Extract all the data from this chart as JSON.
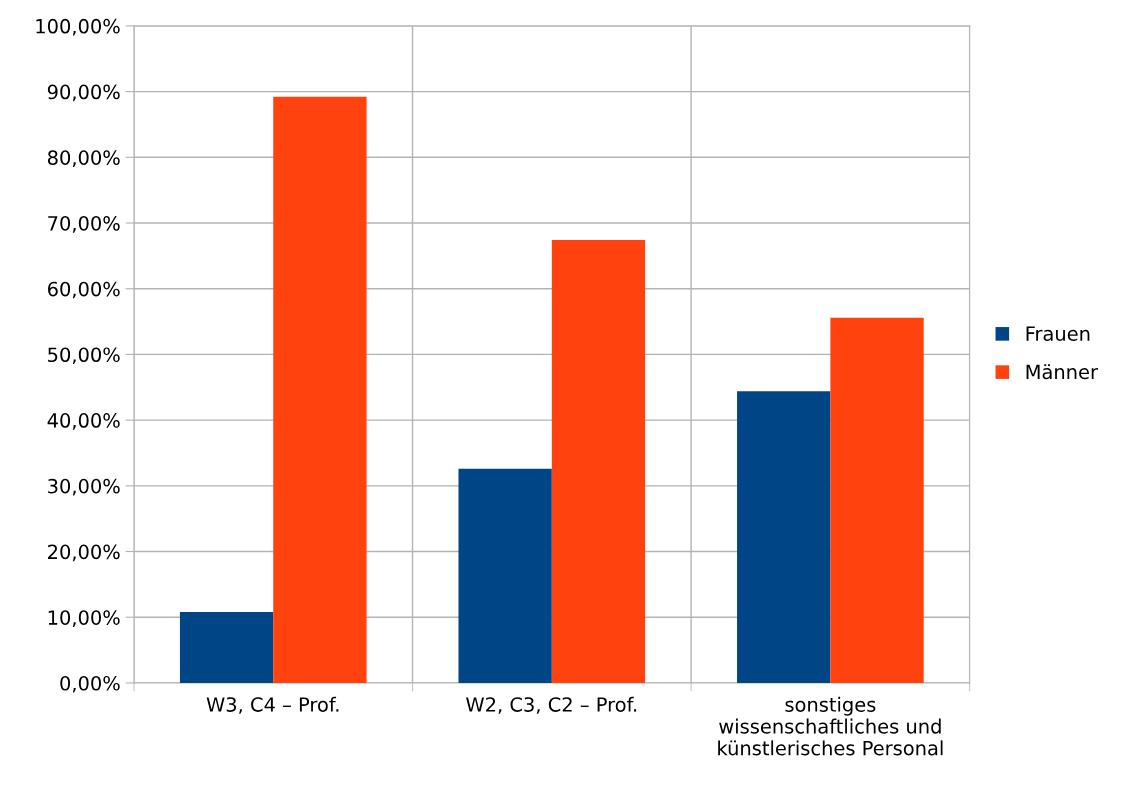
{
  "chart_data": {
    "type": "bar",
    "categories": [
      "W3, C4 – Prof.",
      "W2, C3, C2 – Prof.",
      "sonstiges\nwissenschaftliches und\nkünstlerisches Personal"
    ],
    "series": [
      {
        "name": "Frauen",
        "color": "#004586",
        "values": [
          10.8,
          32.6,
          44.4
        ]
      },
      {
        "name": "Männer",
        "color": "#ff420e",
        "values": [
          89.2,
          67.4,
          55.6
        ]
      }
    ],
    "ylim": [
      0,
      100
    ],
    "yticks": [
      {
        "value": 0,
        "label": "0,00%"
      },
      {
        "value": 10,
        "label": "10,00%"
      },
      {
        "value": 20,
        "label": "20,00%"
      },
      {
        "value": 30,
        "label": "30,00%"
      },
      {
        "value": 40,
        "label": "40,00%"
      },
      {
        "value": 50,
        "label": "50,00%"
      },
      {
        "value": 60,
        "label": "60,00%"
      },
      {
        "value": 70,
        "label": "70,00%"
      },
      {
        "value": 80,
        "label": "80,00%"
      },
      {
        "value": 90,
        "label": "90,00%"
      },
      {
        "value": 100,
        "label": "100,00%"
      }
    ],
    "grid": true,
    "legend": "right"
  }
}
